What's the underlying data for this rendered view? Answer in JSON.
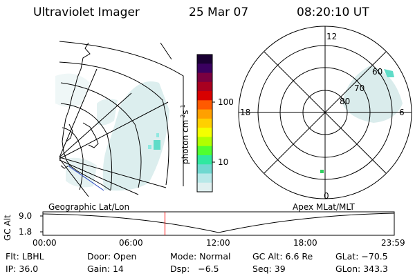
{
  "header": {
    "instrument": "Ultraviolet Imager",
    "date": "25 Mar 07",
    "time": "08:20:10 UT"
  },
  "colorbar": {
    "label": "photon cm",
    "label_exp1": "-2",
    "label_mid": "s",
    "label_exp2": "-1",
    "ticks": [
      "100",
      "10"
    ],
    "scale": "log",
    "colors_top_to_bottom": [
      "#1a0033",
      "#3a0060",
      "#7a0040",
      "#a80020",
      "#d80000",
      "#ff5a00",
      "#ffa000",
      "#ffd000",
      "#f4ff00",
      "#b0ff00",
      "#50ff30",
      "#30e8a0",
      "#70d8d0",
      "#b8e8e8",
      "#e0f0f0"
    ]
  },
  "left_panel": {
    "label": "Geographic Lat/Lon"
  },
  "right_panel": {
    "label": "Apex MLat/MLT",
    "mlt_labels": {
      "top": "12",
      "left": "18",
      "right": "6",
      "bottom": "0"
    },
    "lat_labels": [
      "60",
      "70",
      "80"
    ]
  },
  "altitude_plot": {
    "ylabel": "GC Alt",
    "ticks": [
      "9.0",
      "1.8"
    ],
    "x_ticks": [
      "00:00",
      "06:00",
      "12:00",
      "18:00",
      "23:59"
    ],
    "current_time_marker_hours": 8.34,
    "marker_color": "#ff0000"
  },
  "status": {
    "row1": [
      {
        "label": "Flt:",
        "value": "LBHL"
      },
      {
        "label": "Door:",
        "value": "Open"
      },
      {
        "label": "Mode:",
        "value": "Normal"
      },
      {
        "label": "GC Alt:",
        "value": "6.6 Re"
      },
      {
        "label": "GLat:",
        "value": "−70.5"
      }
    ],
    "row2": [
      {
        "label": "IP:",
        "value": "36.0"
      },
      {
        "label": "Gain:",
        "value": "14"
      },
      {
        "label": "Dsp:",
        "value": "−6.5"
      },
      {
        "label": "Seq:",
        "value": "39"
      },
      {
        "label": "GLon:",
        "value": "343.3"
      }
    ]
  }
}
